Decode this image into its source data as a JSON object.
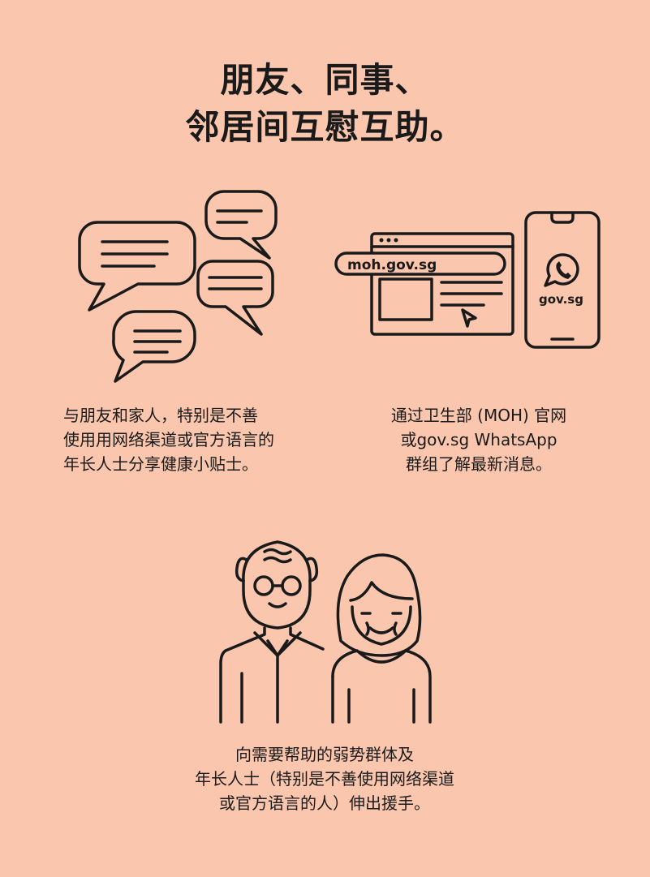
{
  "title": {
    "line1": "朋友、同事、",
    "line2": "邻居间互慰互助。"
  },
  "section_chat": {
    "icon": "chat-bubbles-icon",
    "caption_lines": [
      "与朋友和家人，特别是不善",
      "使用用网络渠道或官方语言的",
      "年长人士分享健康小贴士。"
    ]
  },
  "section_web": {
    "icon": "browser-and-phone-icon",
    "url_label": "moh.gov.sg",
    "phone_label": "gov.sg",
    "caption_lines": [
      "通过卫生部 (MOH) 官网",
      "或gov.sg WhatsApp",
      "群组了解最新消息。"
    ]
  },
  "section_elderly": {
    "icon": "elderly-couple-icon",
    "caption_lines": [
      "向需要帮助的弱势群体及",
      "年长人士（特别是不善使用网络渠道",
      "或官方语言的人）伸出援手。"
    ]
  },
  "colors": {
    "background": "#FAC6AE",
    "ink": "#1a1a1a"
  }
}
